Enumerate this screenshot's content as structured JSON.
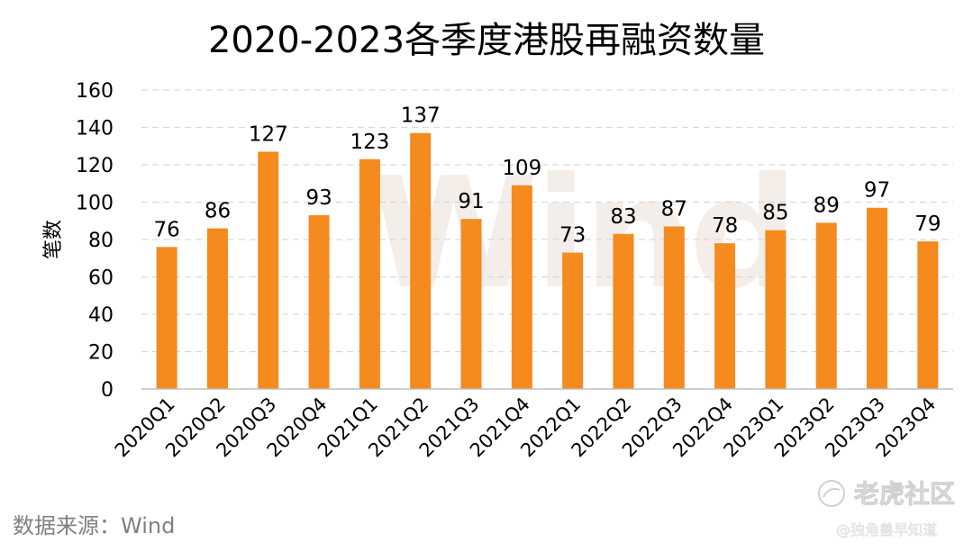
{
  "chart_data": {
    "type": "bar",
    "title": "2020-2023各季度港股再融资数量",
    "ylabel": "笔数",
    "xlabel": "",
    "ylim": [
      0,
      160
    ],
    "yticks": [
      0,
      20,
      40,
      60,
      80,
      100,
      120,
      140,
      160
    ],
    "grid": true,
    "bar_color": "#f58a1f",
    "categories": [
      "2020Q1",
      "2020Q2",
      "2020Q3",
      "2020Q4",
      "2021Q1",
      "2021Q2",
      "2021Q3",
      "2021Q4",
      "2022Q1",
      "2022Q2",
      "2022Q3",
      "2022Q4",
      "2023Q1",
      "2023Q2",
      "2023Q3",
      "2023Q4"
    ],
    "values": [
      76,
      86,
      127,
      93,
      123,
      137,
      91,
      109,
      73,
      83,
      87,
      78,
      85,
      89,
      97,
      79
    ]
  },
  "source": "数据来源：Wind",
  "watermark": "Wind",
  "brand": {
    "icon": "tiger-logo-icon",
    "name": "老虎社区",
    "handle": "@独角兽早知道"
  }
}
